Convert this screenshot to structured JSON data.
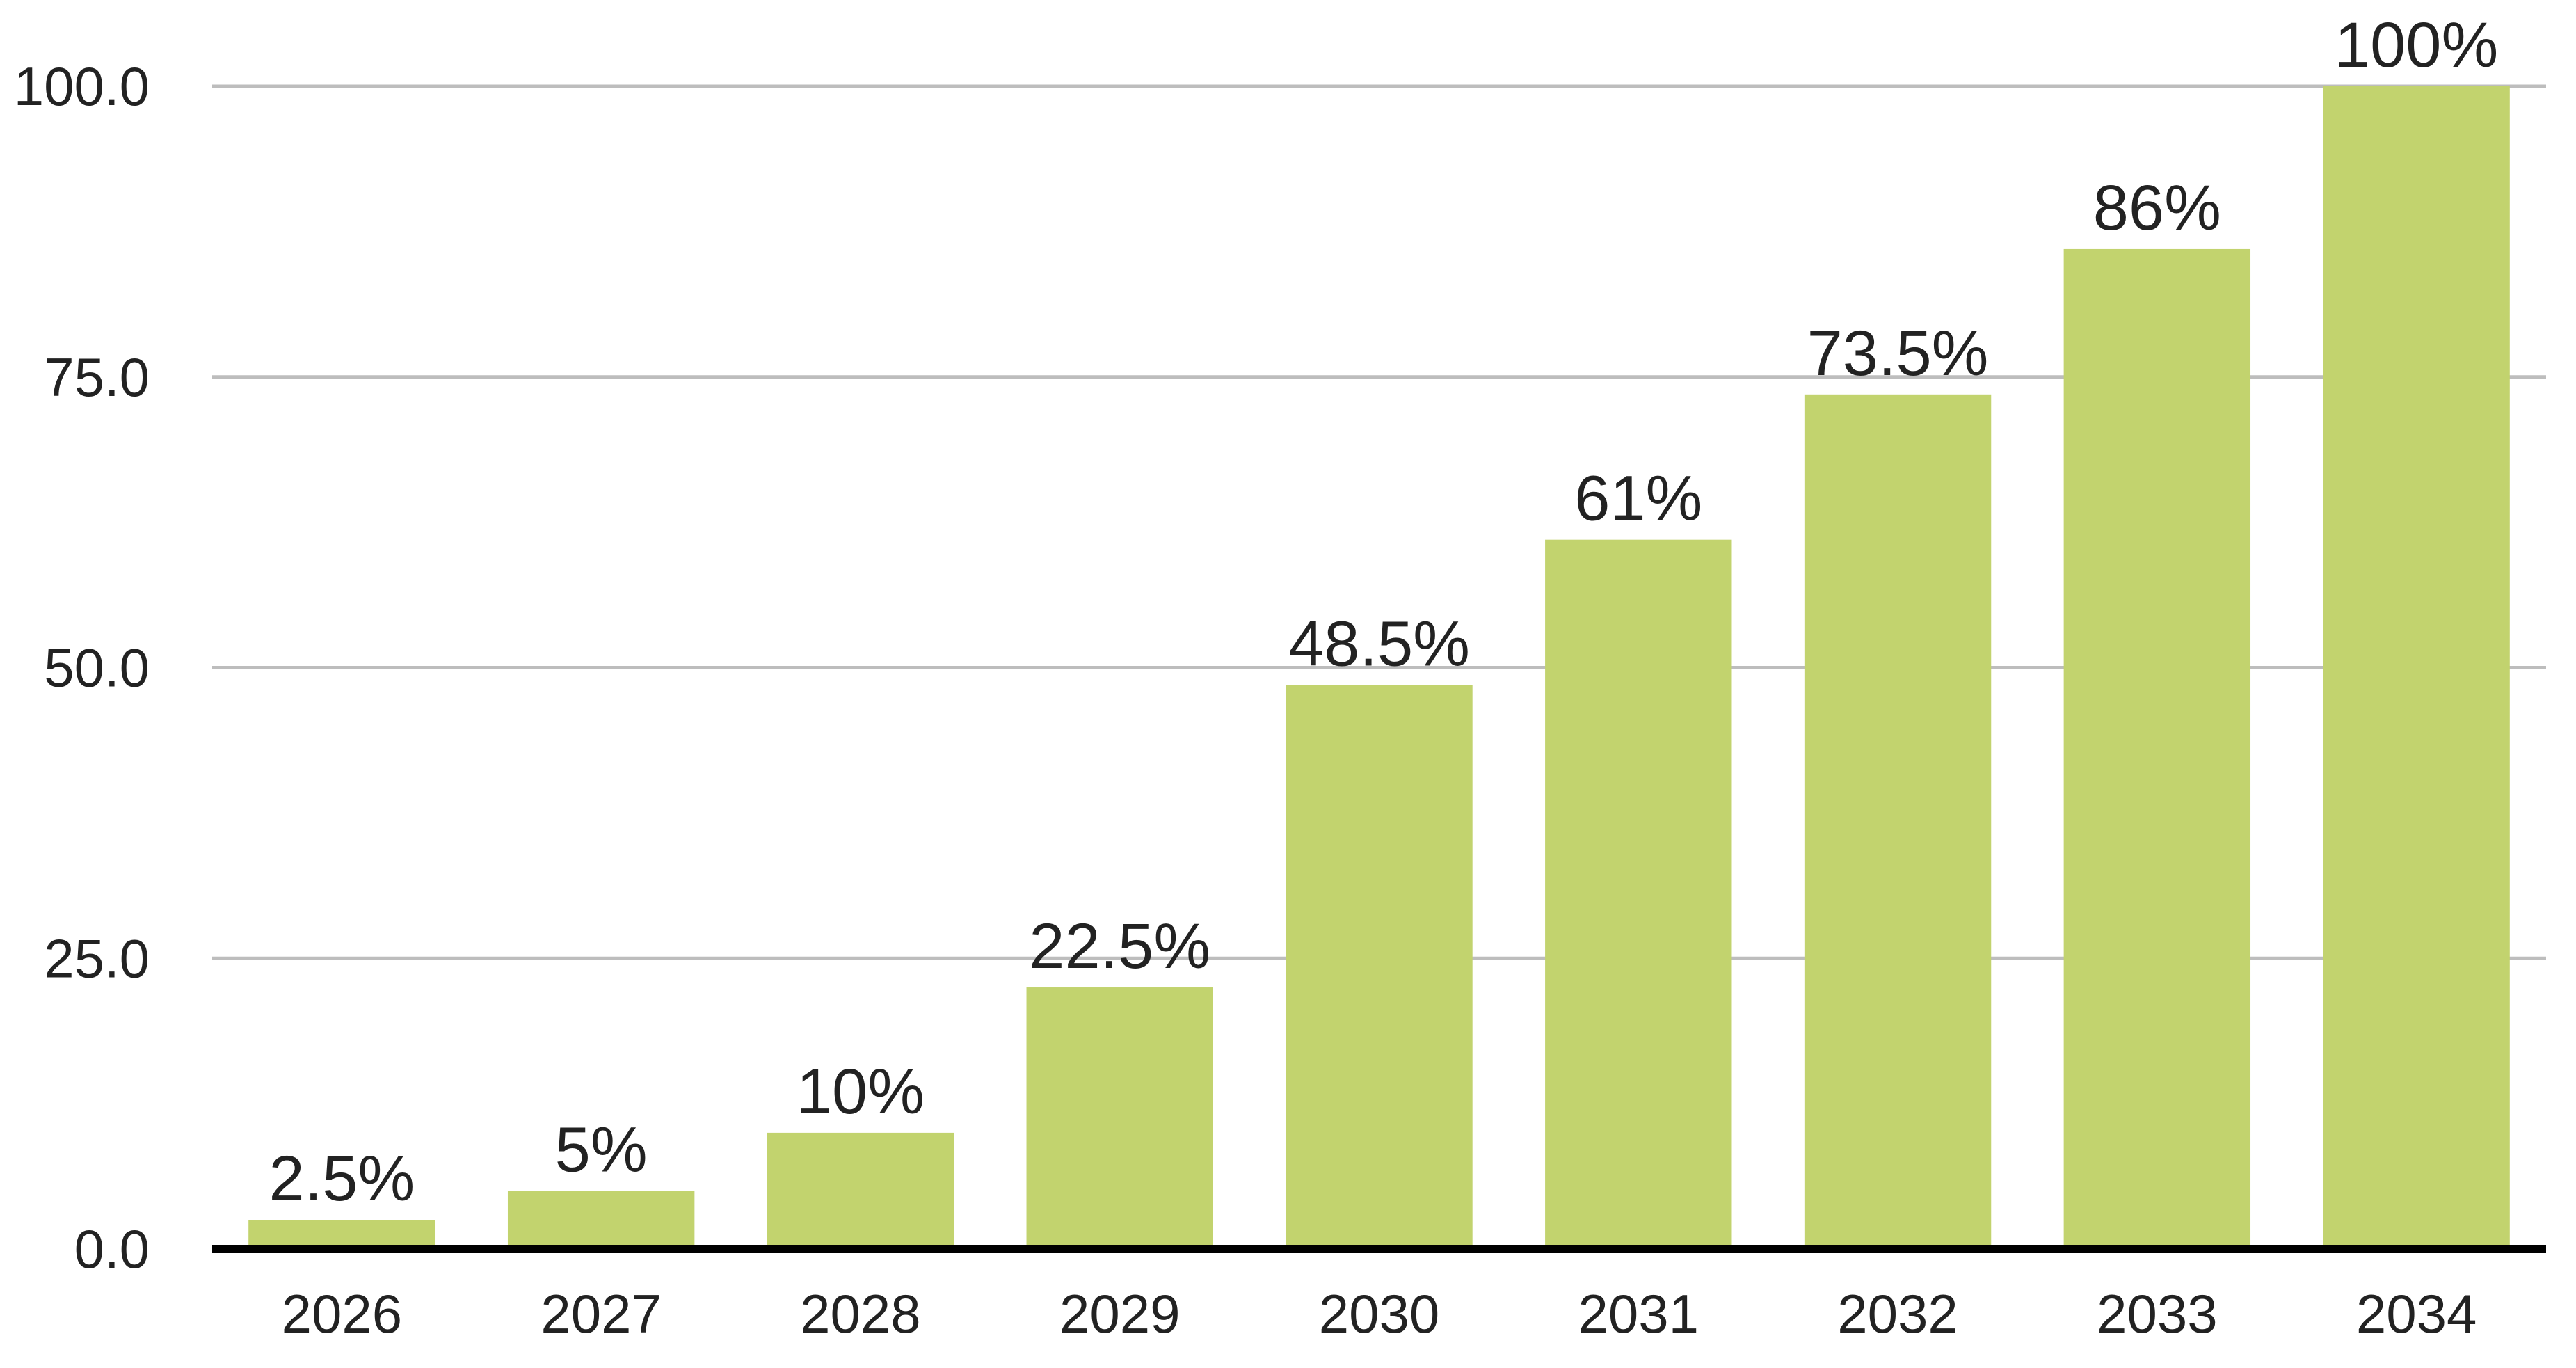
{
  "chart_data": {
    "type": "bar",
    "title": "",
    "xlabel": "",
    "ylabel": "",
    "categories": [
      "2026",
      "2027",
      "2028",
      "2029",
      "2030",
      "2031",
      "2032",
      "2033",
      "2034"
    ],
    "values": [
      2.5,
      5,
      10,
      22.5,
      48.5,
      61,
      73.5,
      86,
      100
    ],
    "data_labels": [
      "2.5%",
      "5%",
      "10%",
      "22.5%",
      "48.5%",
      "61%",
      "73.5%",
      "86%",
      "100%"
    ],
    "y_ticks": [
      0,
      25,
      50,
      75,
      100
    ],
    "y_tick_labels": [
      "0.0",
      "25.0",
      "50.0",
      "75.0",
      "100.0"
    ],
    "ylim": [
      0,
      100
    ],
    "grid": "horizontal",
    "legend": "none",
    "bar_color": "#c2d36e",
    "gridline_color": "#bdbdbd",
    "baseline_color": "#000000",
    "text_color": "#222222"
  }
}
